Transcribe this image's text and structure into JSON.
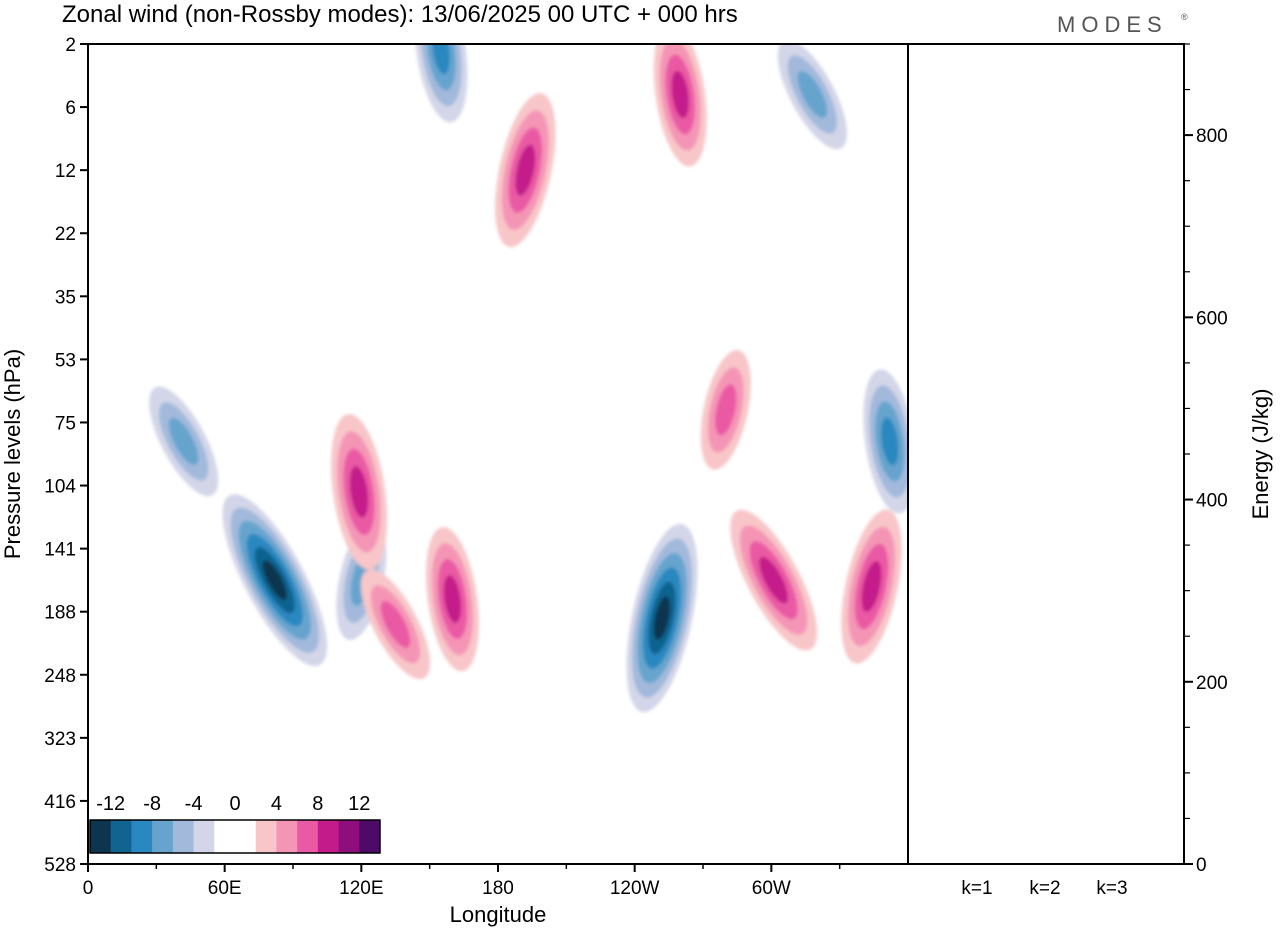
{
  "title": "Zonal wind (non-Rossby modes):  13/06/2025  00 UTC  + 000 hrs",
  "logo": "MODES",
  "logo_mark": "®",
  "chart_data": [
    {
      "type": "heatmap",
      "title": "Zonal wind (non-Rossby modes):  13/06/2025  00 UTC  + 000 hrs",
      "xlabel": "Longitude",
      "ylabel": "Pressure levels (hPa)",
      "x_ticks": [
        "0",
        "60E",
        "120E",
        "180",
        "120W",
        "60W"
      ],
      "x_tick_degrees": [
        0,
        60,
        120,
        180,
        240,
        300
      ],
      "xlim": [
        0,
        360
      ],
      "y_ticks": [
        "2",
        "6",
        "12",
        "22",
        "35",
        "53",
        "75",
        "104",
        "141",
        "188",
        "248",
        "323",
        "416",
        "528"
      ],
      "y_scale": "ordinal pressure levels, 2 hPa at top, 528 hPa at bottom",
      "colorbar": {
        "labels": [
          "-12",
          "-8",
          "-4",
          "0",
          "4",
          "8",
          "12"
        ],
        "colors": [
          "#0d3550",
          "#11648f",
          "#2a88c0",
          "#66a4ce",
          "#a2b9dc",
          "#d3d6e8",
          "#ffffff",
          "#ffffff",
          "#f8c6c8",
          "#f595b6",
          "#ea5aa4",
          "#c41b8a",
          "#8e0f7c",
          "#4e0a68"
        ]
      },
      "features": [
        {
          "sign": "negative",
          "lon": 82,
          "level_index": 8.5,
          "peak": -12
        },
        {
          "sign": "negative",
          "lon": 252,
          "level_index": 9.1,
          "peak": -12
        },
        {
          "sign": "negative",
          "lon": 352,
          "level_index": 6.3,
          "peak": -8
        },
        {
          "sign": "negative",
          "lon": 42,
          "level_index": 6.3,
          "peak": -6
        },
        {
          "sign": "negative",
          "lon": 120,
          "level_index": 8.5,
          "peak": -6
        },
        {
          "sign": "negative",
          "lon": 155,
          "level_index": 0.1,
          "peak": -8
        },
        {
          "sign": "negative",
          "lon": 318,
          "level_index": 0.8,
          "peak": -6
        },
        {
          "sign": "positive",
          "lon": 192,
          "level_index": 2.0,
          "peak": 9
        },
        {
          "sign": "positive",
          "lon": 119,
          "level_index": 7.1,
          "peak": 9
        },
        {
          "sign": "positive",
          "lon": 301,
          "level_index": 8.5,
          "peak": 9
        },
        {
          "sign": "positive",
          "lon": 344,
          "level_index": 8.6,
          "peak": 9
        },
        {
          "sign": "positive",
          "lon": 160,
          "level_index": 8.8,
          "peak": 8
        },
        {
          "sign": "positive",
          "lon": 135,
          "level_index": 9.2,
          "peak": 6
        },
        {
          "sign": "positive",
          "lon": 280,
          "level_index": 5.8,
          "peak": 6
        },
        {
          "sign": "positive",
          "lon": 260,
          "level_index": 0.8,
          "peak": 8
        }
      ]
    },
    {
      "type": "bar",
      "categories": [
        "k=1",
        "k=2",
        "k=3"
      ],
      "values": [
        1,
        1,
        1
      ],
      "ylabel": "Energy (J/kg)",
      "ylim": [
        0,
        900
      ],
      "y_ticks": [
        "0",
        "200",
        "400",
        "600",
        "800"
      ]
    }
  ]
}
